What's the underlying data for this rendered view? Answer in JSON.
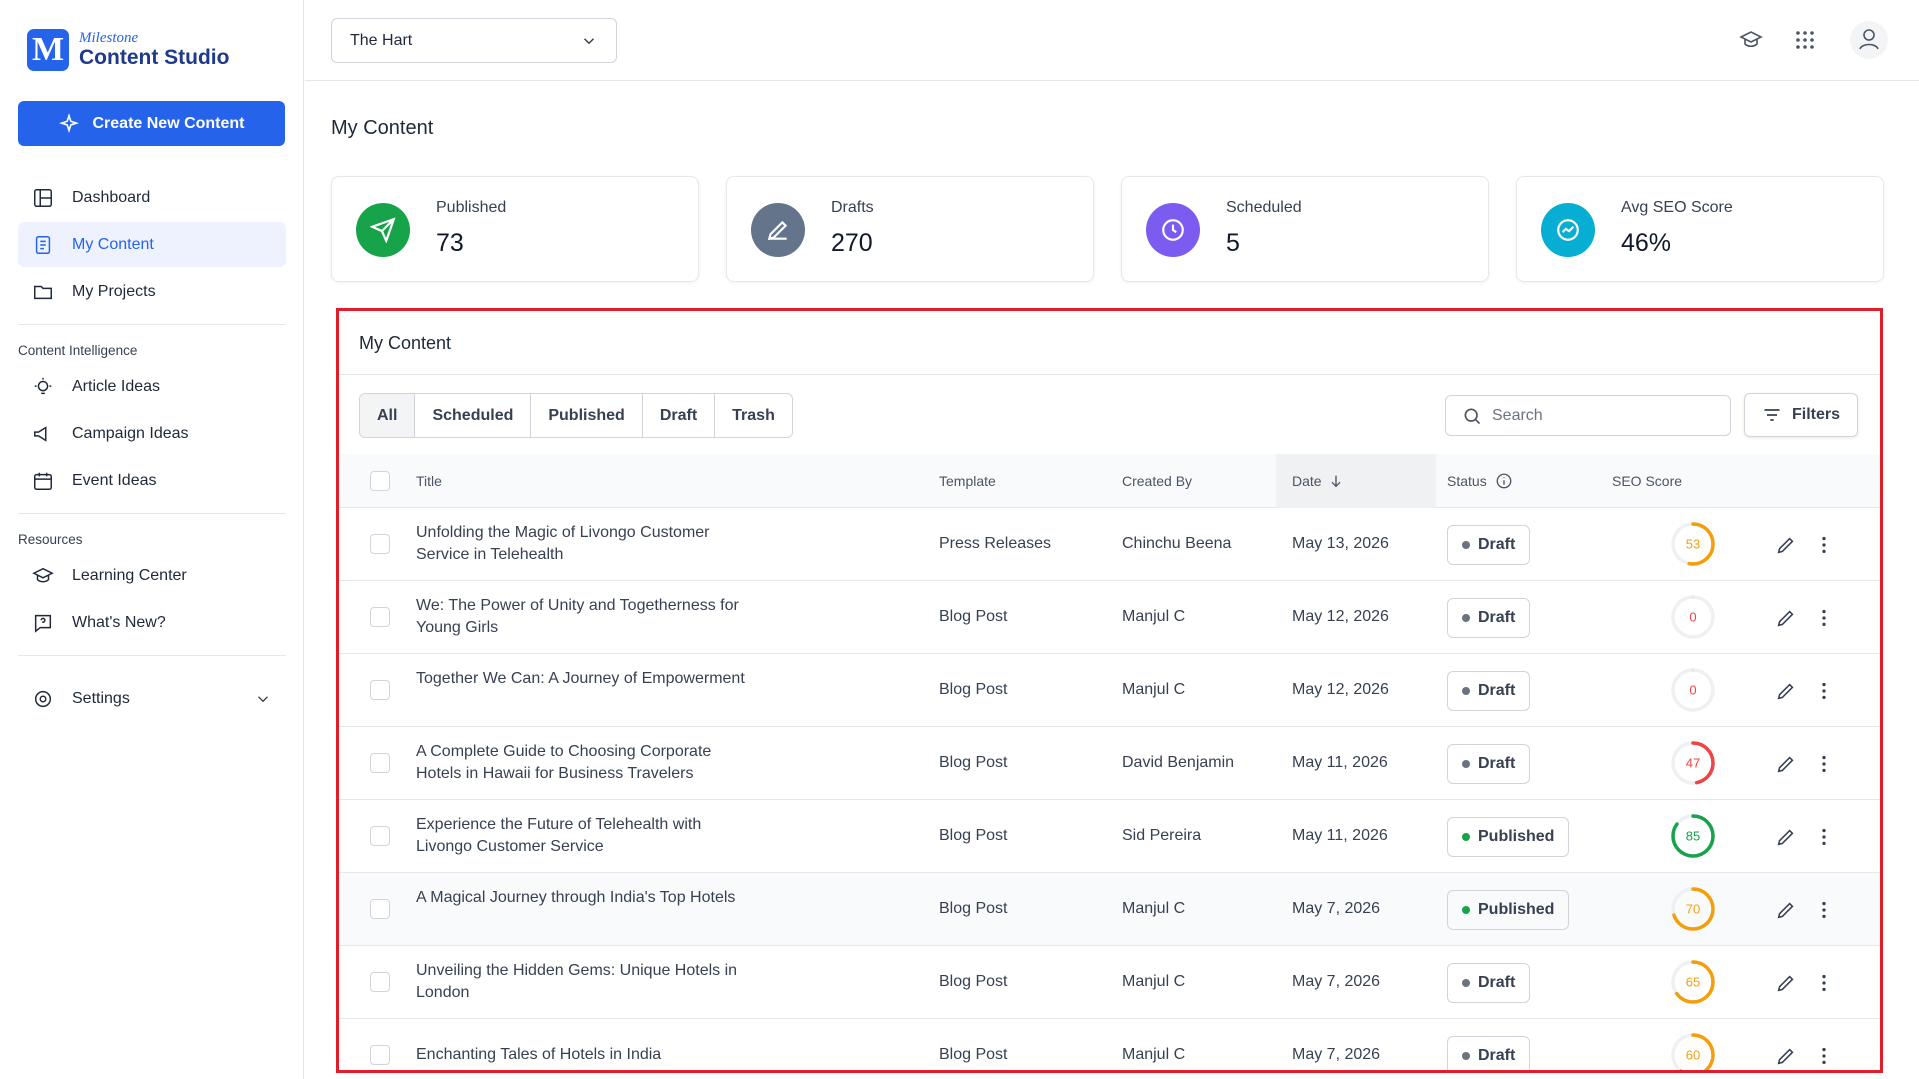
{
  "sidebar": {
    "brand_top": "Milestone",
    "brand": "Content Studio",
    "create_button": "Create New Content",
    "nav": [
      "Dashboard",
      "My Content",
      "My Projects"
    ],
    "sections": [
      {
        "title": "Content Intelligence",
        "items": [
          "Article Ideas",
          "Campaign Ideas",
          "Event Ideas"
        ]
      },
      {
        "title": "Resources",
        "items": [
          "Learning Center",
          "What's New?"
        ]
      }
    ],
    "settings": "Settings"
  },
  "header": {
    "property": "The Hart"
  },
  "page_title": "My Content",
  "stats": [
    {
      "label": "Published",
      "value": 73
    },
    {
      "label": "Drafts",
      "value": 270
    },
    {
      "label": "Scheduled",
      "value": 5
    },
    {
      "label": "Avg SEO Score",
      "value": "46%"
    }
  ],
  "panel": {
    "title": "My Content",
    "tabs": [
      "All",
      "Scheduled",
      "Published",
      "Draft",
      "Trash"
    ],
    "search": "Search",
    "filters": "Filters",
    "columns": [
      "Title",
      "Template",
      "Created By",
      "Date",
      "Status",
      "SEO Score"
    ],
    "rows": [
      {
        "title": "Unfolding the Magic of Livongo Customer Service in Telehealth",
        "template": "Press Releases",
        "created_by": "Chinchu Beena",
        "date": "May 13, 2026",
        "status": "Draft",
        "seo": 53
      },
      {
        "title": "We: The Power of Unity and Togetherness for Young Girls",
        "template": "Blog Post",
        "created_by": "Manjul C",
        "date": "May 12, 2026",
        "status": "Draft",
        "seo": 0
      },
      {
        "title": "Together We Can: A Journey of Empowerment",
        "template": "Blog Post",
        "created_by": "Manjul C",
        "date": "May 12, 2026",
        "status": "Draft",
        "seo": 0
      },
      {
        "title": "A Complete Guide to Choosing Corporate Hotels in Hawaii for Business Travelers",
        "template": "Blog Post",
        "created_by": "David Benjamin",
        "date": "May 11, 2026",
        "status": "Draft",
        "seo": 47
      },
      {
        "title": "Experience the Future of Telehealth with Livongo Customer Service",
        "template": "Blog Post",
        "created_by": "Sid Pereira",
        "date": "May 11, 2026",
        "status": "Published",
        "seo": 85
      },
      {
        "title": "A Magical Journey through India's Top Hotels",
        "template": "Blog Post",
        "created_by": "Manjul C",
        "date": "May 7, 2026",
        "status": "Published",
        "seo": 70
      },
      {
        "title": "Unveiling the Hidden Gems: Unique Hotels in London",
        "template": "Blog Post",
        "created_by": "Manjul C",
        "date": "May 7, 2026",
        "status": "Draft",
        "seo": 65
      },
      {
        "title": "Enchanting Tales of Hotels in India",
        "template": "Blog Post",
        "created_by": "Manjul C",
        "date": "May 7, 2026",
        "status": "Draft",
        "seo": 60
      }
    ]
  }
}
